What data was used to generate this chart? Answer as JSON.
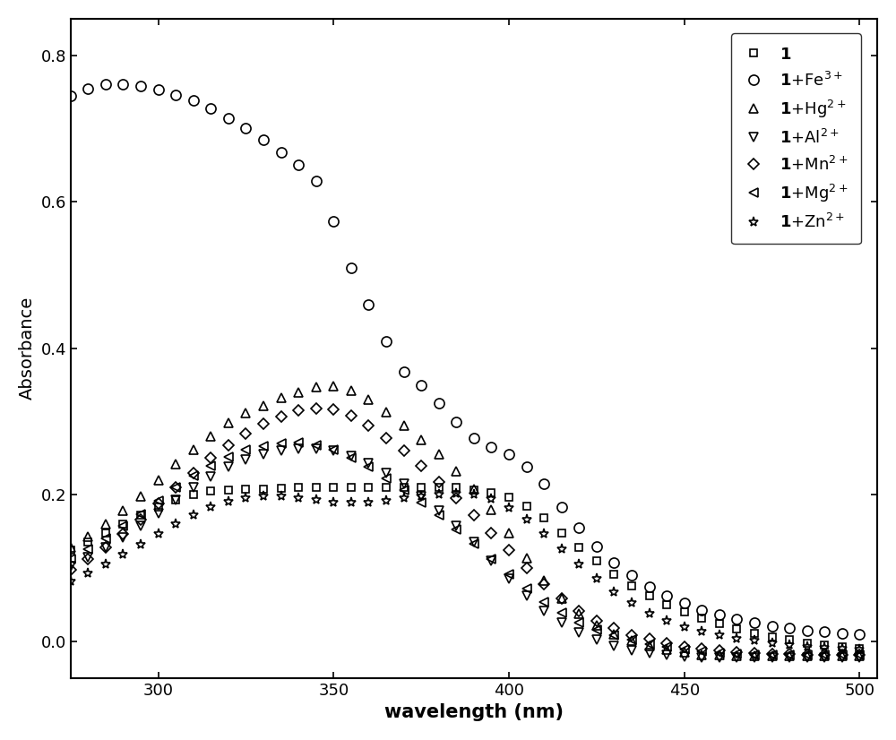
{
  "wavelengths": [
    275,
    280,
    285,
    290,
    295,
    300,
    305,
    310,
    315,
    320,
    325,
    330,
    335,
    340,
    345,
    350,
    355,
    360,
    365,
    370,
    375,
    380,
    385,
    390,
    395,
    400,
    405,
    410,
    415,
    420,
    425,
    430,
    435,
    440,
    445,
    450,
    455,
    460,
    465,
    470,
    475,
    480,
    485,
    490,
    495,
    500
  ],
  "series": {
    "1": {
      "marker": "s",
      "markersize": 6,
      "values": [
        0.125,
        0.135,
        0.148,
        0.16,
        0.172,
        0.183,
        0.193,
        0.2,
        0.205,
        0.207,
        0.208,
        0.208,
        0.209,
        0.21,
        0.21,
        0.21,
        0.21,
        0.21,
        0.21,
        0.21,
        0.21,
        0.21,
        0.21,
        0.207,
        0.203,
        0.197,
        0.185,
        0.168,
        0.148,
        0.128,
        0.11,
        0.092,
        0.076,
        0.062,
        0.05,
        0.04,
        0.032,
        0.024,
        0.017,
        0.011,
        0.006,
        0.002,
        -0.002,
        -0.005,
        -0.007,
        -0.01
      ]
    },
    "Fe3": {
      "marker": "o",
      "markersize": 8,
      "values": [
        0.745,
        0.755,
        0.76,
        0.76,
        0.758,
        0.753,
        0.746,
        0.738,
        0.727,
        0.714,
        0.7,
        0.685,
        0.668,
        0.65,
        0.628,
        0.574,
        0.51,
        0.46,
        0.41,
        0.368,
        0.35,
        0.325,
        0.3,
        0.278,
        0.265,
        0.255,
        0.238,
        0.215,
        0.183,
        0.155,
        0.13,
        0.108,
        0.09,
        0.074,
        0.062,
        0.052,
        0.043,
        0.036,
        0.03,
        0.025,
        0.021,
        0.018,
        0.015,
        0.013,
        0.011,
        0.01
      ]
    },
    "Hg2": {
      "marker": "^",
      "markersize": 7,
      "values": [
        0.128,
        0.143,
        0.16,
        0.178,
        0.198,
        0.22,
        0.242,
        0.262,
        0.28,
        0.298,
        0.312,
        0.322,
        0.332,
        0.34,
        0.347,
        0.348,
        0.342,
        0.33,
        0.313,
        0.295,
        0.275,
        0.255,
        0.232,
        0.208,
        0.18,
        0.148,
        0.114,
        0.083,
        0.058,
        0.038,
        0.022,
        0.01,
        0.001,
        -0.006,
        -0.011,
        -0.015,
        -0.018,
        -0.019,
        -0.02,
        -0.02,
        -0.02,
        -0.02,
        -0.02,
        -0.02,
        -0.02,
        -0.02
      ]
    },
    "Al2": {
      "marker": "v",
      "markersize": 7,
      "values": [
        0.103,
        0.115,
        0.128,
        0.142,
        0.158,
        0.175,
        0.193,
        0.21,
        0.225,
        0.238,
        0.248,
        0.255,
        0.26,
        0.263,
        0.263,
        0.26,
        0.253,
        0.243,
        0.23,
        0.215,
        0.198,
        0.178,
        0.158,
        0.135,
        0.11,
        0.085,
        0.062,
        0.042,
        0.025,
        0.012,
        0.002,
        -0.006,
        -0.012,
        -0.016,
        -0.019,
        -0.021,
        -0.022,
        -0.022,
        -0.022,
        -0.022,
        -0.022,
        -0.022,
        -0.022,
        -0.022,
        -0.022,
        -0.022
      ]
    },
    "Mn2": {
      "marker": "D",
      "markersize": 6,
      "values": [
        0.098,
        0.112,
        0.128,
        0.146,
        0.166,
        0.188,
        0.21,
        0.23,
        0.25,
        0.268,
        0.284,
        0.297,
        0.307,
        0.315,
        0.318,
        0.316,
        0.308,
        0.295,
        0.278,
        0.26,
        0.24,
        0.218,
        0.196,
        0.172,
        0.148,
        0.124,
        0.1,
        0.078,
        0.058,
        0.042,
        0.028,
        0.018,
        0.009,
        0.003,
        -0.003,
        -0.007,
        -0.01,
        -0.013,
        -0.015,
        -0.016,
        -0.017,
        -0.017,
        -0.018,
        -0.018,
        -0.018,
        -0.018
      ]
    },
    "Mg2": {
      "marker": "<",
      "markersize": 7,
      "values": [
        0.112,
        0.126,
        0.141,
        0.157,
        0.174,
        0.192,
        0.21,
        0.226,
        0.24,
        0.252,
        0.261,
        0.267,
        0.27,
        0.271,
        0.268,
        0.261,
        0.251,
        0.238,
        0.223,
        0.207,
        0.19,
        0.172,
        0.153,
        0.133,
        0.112,
        0.091,
        0.072,
        0.054,
        0.039,
        0.026,
        0.016,
        0.008,
        0.002,
        -0.004,
        -0.008,
        -0.011,
        -0.014,
        -0.016,
        -0.017,
        -0.018,
        -0.018,
        -0.018,
        -0.018,
        -0.018,
        -0.018,
        -0.018
      ]
    },
    "Zn2": {
      "marker": "*",
      "markersize": 8,
      "values": [
        0.082,
        0.093,
        0.105,
        0.118,
        0.132,
        0.146,
        0.16,
        0.172,
        0.183,
        0.191,
        0.196,
        0.198,
        0.198,
        0.196,
        0.193,
        0.19,
        0.189,
        0.19,
        0.192,
        0.195,
        0.198,
        0.2,
        0.202,
        0.2,
        0.194,
        0.182,
        0.166,
        0.147,
        0.126,
        0.105,
        0.085,
        0.067,
        0.052,
        0.038,
        0.028,
        0.019,
        0.013,
        0.008,
        0.004,
        0.001,
        -0.002,
        -0.005,
        -0.007,
        -0.009,
        -0.01,
        -0.011
      ]
    }
  },
  "series_order": [
    "1",
    "Fe3",
    "Hg2",
    "Al2",
    "Mn2",
    "Mg2",
    "Zn2"
  ],
  "legend_entries": [
    {
      "label_bold": "1",
      "label_rest": "",
      "marker": "s",
      "markersize": 6
    },
    {
      "label_bold": "1",
      "label_rest": "+Fe$^{3+}$",
      "marker": "o",
      "markersize": 8
    },
    {
      "label_bold": "1",
      "label_rest": "+Hg$^{2+}$",
      "marker": "^",
      "markersize": 7
    },
    {
      "label_bold": "1",
      "label_rest": "+Al$^{2+}$",
      "marker": "v",
      "markersize": 7
    },
    {
      "label_bold": "1",
      "label_rest": "+Mn$^{2+}$",
      "marker": "D",
      "markersize": 6
    },
    {
      "label_bold": "1",
      "label_rest": "+Mg$^{2+}$",
      "marker": "<",
      "markersize": 7
    },
    {
      "label_bold": "1",
      "label_rest": "+Zn$^{2+}$",
      "marker": "*",
      "markersize": 8
    }
  ],
  "xlabel": "wavelength (nm)",
  "ylabel": "Absorbance",
  "xlim": [
    275,
    505
  ],
  "ylim": [
    -0.05,
    0.85
  ],
  "xticks": [
    300,
    350,
    400,
    450,
    500
  ],
  "yticks": [
    0.0,
    0.2,
    0.4,
    0.6,
    0.8
  ],
  "marker_color": "#000000",
  "markerfacecolor": "none",
  "markeredgewidth": 1.2
}
